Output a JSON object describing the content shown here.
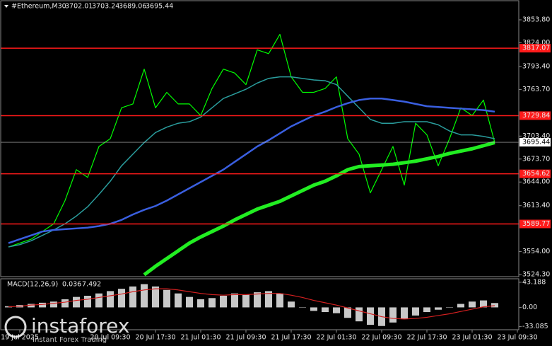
{
  "chart_data": [
    {
      "type": "line",
      "title": "#Ethereum,M30",
      "last_bar": {
        "open": 3702.01,
        "high": 3703.24,
        "low": 3689.06,
        "close": 3695.44
      },
      "categories": [
        null,
        "19 Jul 2025",
        null,
        null,
        null,
        null,
        null,
        null,
        null,
        "20 Jul 09:30",
        null,
        null,
        null,
        "20 Jul 17:30",
        null,
        null,
        null,
        "21 Jul 01:30",
        null,
        null,
        null,
        "21 Jul 09:30",
        null,
        null,
        null,
        "21 Jul 17:30",
        null,
        null,
        null,
        "22 Jul 01:30",
        null,
        null,
        null,
        "22 Jul 09:30",
        null,
        null,
        null,
        "22 Jul 17:30",
        null,
        null,
        null,
        "23 Jul 01:30",
        null,
        null,
        null,
        "23 Jul 09:30"
      ],
      "series": [
        {
          "color": "#00ff00",
          "width": 1.2,
          "values": [
            3560,
            3565,
            3570,
            3580,
            3590,
            3620,
            3660,
            3650,
            3690,
            3700,
            3740,
            3745,
            3790,
            3740,
            3760,
            3745,
            3745,
            3730,
            3765,
            3790,
            3785,
            3770,
            3815,
            3810,
            3835,
            3780,
            3760,
            3760,
            3765,
            3780,
            3700,
            3680,
            3630,
            3660,
            3690,
            3640,
            3720,
            3705,
            3665,
            3700,
            3740,
            3730,
            3750,
            3695,
            null,
            null
          ]
        },
        {
          "color": "#2a9d9d",
          "width": 1.5,
          "values": [
            3560,
            3563,
            3568,
            3575,
            3582,
            3590,
            3600,
            3612,
            3628,
            3645,
            3665,
            3680,
            3695,
            3708,
            3715,
            3720,
            3722,
            3728,
            3740,
            3752,
            3758,
            3764,
            3772,
            3778,
            3780,
            3780,
            3778,
            3776,
            3775,
            3770,
            3755,
            3740,
            3725,
            3720,
            3720,
            3722,
            3722,
            3722,
            3718,
            3710,
            3705,
            3705,
            3703,
            3700,
            null,
            null
          ]
        },
        {
          "color": "#3a5fe0",
          "width": 2.5,
          "values": [
            3565,
            3570,
            3575,
            3580,
            3582,
            3583,
            3584,
            3585,
            3587,
            3590,
            3595,
            3602,
            3608,
            3613,
            3620,
            3628,
            3636,
            3644,
            3652,
            3660,
            3670,
            3680,
            3690,
            3698,
            3707,
            3716,
            3723,
            3730,
            3735,
            3741,
            3746,
            3750,
            3752,
            3752,
            3750,
            3748,
            3745,
            3742,
            3741,
            3740,
            3739,
            3738,
            3737,
            3735,
            null,
            null
          ]
        },
        {
          "color": "#22ee22",
          "width": 5,
          "values": [
            null,
            null,
            null,
            null,
            null,
            null,
            null,
            null,
            null,
            null,
            null,
            null,
            3524,
            3535,
            3545,
            3555,
            3565,
            3573,
            3580,
            3587,
            3595,
            3602,
            3609,
            3614,
            3619,
            3626,
            3633,
            3640,
            3645,
            3652,
            3660,
            3664,
            3665,
            3666,
            3667,
            3669,
            3671,
            3674,
            3677,
            3681,
            3684,
            3687,
            3691,
            3695,
            null,
            null
          ]
        }
      ],
      "levels": [
        3817.07,
        3729.84,
        3654.62,
        3589.77
      ],
      "level_color": "#ff1a1a",
      "ylim": [
        3521.6,
        3878.5
      ],
      "yticks": [
        {
          "value": 3853.8,
          "label": "3853.80"
        },
        {
          "value": 3824,
          "label": "3824.00"
        },
        {
          "value": 3793.4,
          "label": "3793.40"
        },
        {
          "value": 3763.7,
          "label": "3763.70"
        },
        {
          "value": 3703.4,
          "label": "3703.40"
        },
        {
          "value": 3673.7,
          "label": "3673.70"
        },
        {
          "value": 3644,
          "label": "3644.00"
        },
        {
          "value": 3613.4,
          "label": "3613.40"
        },
        {
          "value": 3554,
          "label": "3554.00"
        },
        {
          "value": 3524.3,
          "label": "3524.30"
        }
      ]
    },
    {
      "type": "bar",
      "title": "MACD(12,26,9)",
      "readout": [
        0.036,
        7.492
      ],
      "series": [
        {
          "type": "bar",
          "color": "#c8c8c8",
          "values": [
            2,
            4,
            6,
            8,
            10,
            14,
            18,
            20,
            24,
            28,
            32,
            36,
            40,
            36,
            30,
            24,
            18,
            14,
            16,
            20,
            24,
            22,
            26,
            28,
            24,
            10,
            0,
            -6,
            -8,
            -10,
            -18,
            -24,
            -30,
            -32,
            -26,
            -20,
            -14,
            -8,
            -4,
            0,
            6,
            10,
            12,
            7.492,
            null,
            null
          ]
        },
        {
          "type": "line",
          "color": "#d42020",
          "values": [
            1,
            2,
            4,
            5,
            7,
            9,
            12,
            14,
            17,
            20,
            23,
            27,
            30,
            32,
            32,
            30,
            27,
            24,
            22,
            21,
            22,
            22,
            23,
            24,
            24,
            21,
            17,
            12,
            8,
            4,
            -1,
            -6,
            -11,
            -16,
            -19,
            -20,
            -19,
            -17,
            -14,
            -11,
            -7,
            -3,
            1,
            3,
            null,
            null
          ]
        }
      ],
      "ylim": [
        -38.4,
        49.2
      ],
      "yticks": [
        43.188,
        {
          "value": 0,
          "label": "0.00"
        },
        -33.085
      ]
    }
  ],
  "watermark": {
    "brand": "instaforex",
    "tagline": "Instant Forex Trading"
  }
}
